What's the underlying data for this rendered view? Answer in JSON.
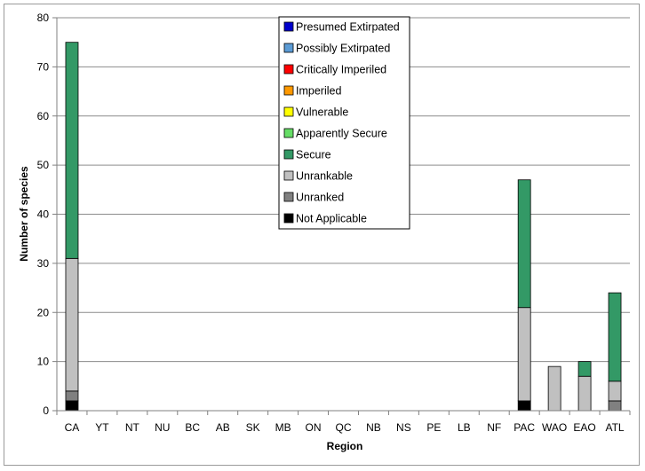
{
  "chart_data": {
    "type": "bar",
    "stacked": true,
    "xlabel": "Region",
    "ylabel": "Number of species",
    "ylim": [
      0,
      80
    ],
    "yticks": [
      0,
      10,
      20,
      30,
      40,
      50,
      60,
      70,
      80
    ],
    "grid": true,
    "legend_position": "top-center",
    "categories": [
      "CA",
      "YT",
      "NT",
      "NU",
      "BC",
      "AB",
      "SK",
      "MB",
      "ON",
      "QC",
      "NB",
      "NS",
      "PE",
      "LB",
      "NF",
      "PAC",
      "WAO",
      "EAO",
      "ATL"
    ],
    "series": [
      {
        "name": "Not Applicable",
        "color": "#000000",
        "values": [
          2,
          0,
          0,
          0,
          0,
          0,
          0,
          0,
          0,
          0,
          0,
          0,
          0,
          0,
          0,
          2,
          0,
          0,
          0
        ]
      },
      {
        "name": "Unranked",
        "color": "#808080",
        "values": [
          2,
          0,
          0,
          0,
          0,
          0,
          0,
          0,
          0,
          0,
          0,
          0,
          0,
          0,
          0,
          0,
          0,
          0,
          2
        ]
      },
      {
        "name": "Unrankable",
        "color": "#c0c0c0",
        "values": [
          27,
          0,
          0,
          0,
          0,
          0,
          0,
          0,
          0,
          0,
          0,
          0,
          0,
          0,
          0,
          19,
          9,
          7,
          4
        ]
      },
      {
        "name": "Secure",
        "color": "#339966",
        "values": [
          44,
          0,
          0,
          0,
          0,
          0,
          0,
          0,
          0,
          0,
          0,
          0,
          0,
          0,
          0,
          26,
          0,
          3,
          18
        ]
      },
      {
        "name": "Apparently Secure",
        "color": "#66dd66",
        "values": [
          0,
          0,
          0,
          0,
          0,
          0,
          0,
          0,
          0,
          0,
          0,
          0,
          0,
          0,
          0,
          0,
          0,
          0,
          0
        ]
      },
      {
        "name": "Vulnerable",
        "color": "#ffff00",
        "values": [
          0,
          0,
          0,
          0,
          0,
          0,
          0,
          0,
          0,
          0,
          0,
          0,
          0,
          0,
          0,
          0,
          0,
          0,
          0
        ]
      },
      {
        "name": "Imperiled",
        "color": "#ff9900",
        "values": [
          0,
          0,
          0,
          0,
          0,
          0,
          0,
          0,
          0,
          0,
          0,
          0,
          0,
          0,
          0,
          0,
          0,
          0,
          0
        ]
      },
      {
        "name": "Critically Imperiled",
        "color": "#ff0000",
        "values": [
          0,
          0,
          0,
          0,
          0,
          0,
          0,
          0,
          0,
          0,
          0,
          0,
          0,
          0,
          0,
          0,
          0,
          0,
          0
        ]
      },
      {
        "name": "Possibly Extirpated",
        "color": "#5b9bd5",
        "values": [
          0,
          0,
          0,
          0,
          0,
          0,
          0,
          0,
          0,
          0,
          0,
          0,
          0,
          0,
          0,
          0,
          0,
          0,
          0
        ]
      },
      {
        "name": "Presumed Extirpated",
        "color": "#0000cc",
        "values": [
          0,
          0,
          0,
          0,
          0,
          0,
          0,
          0,
          0,
          0,
          0,
          0,
          0,
          0,
          0,
          0,
          0,
          0,
          0
        ]
      }
    ]
  }
}
